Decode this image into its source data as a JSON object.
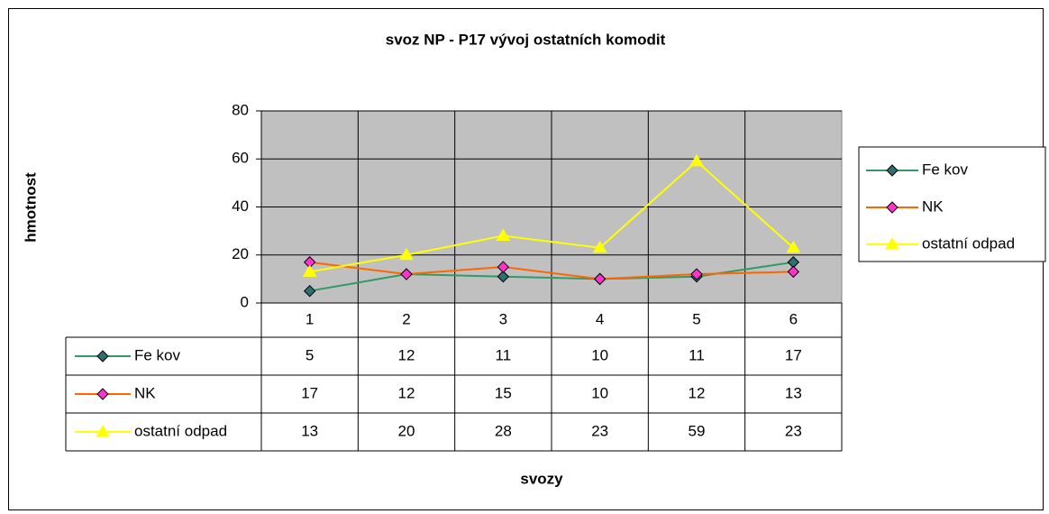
{
  "chart_data": {
    "type": "line",
    "title": "svoz NP - P17 vývoj ostatních komodit",
    "x_label": "svozy",
    "y_label": "hmotnost",
    "categories": [
      "1",
      "2",
      "3",
      "4",
      "5",
      "6"
    ],
    "series": [
      {
        "name": "Fe kov",
        "color": "#339966",
        "marker": "diamond",
        "marker_color": "#2e7070",
        "values": [
          5,
          12,
          11,
          10,
          11,
          17
        ]
      },
      {
        "name": "NK",
        "color": "#ff6600",
        "marker": "diamond",
        "marker_color": "#ff33cc",
        "values": [
          17,
          12,
          15,
          10,
          12,
          13
        ]
      },
      {
        "name": "ostatní odpad",
        "color": "#ffff00",
        "marker": "triangle",
        "marker_color": "#ffff00",
        "values": [
          13,
          20,
          28,
          23,
          59,
          23
        ]
      }
    ],
    "ylim": [
      0,
      80
    ],
    "yticks": [
      0,
      20,
      40,
      60,
      80
    ],
    "grid": true,
    "legend": "right",
    "data_table": true,
    "plot_background": "#c0c0c0"
  }
}
